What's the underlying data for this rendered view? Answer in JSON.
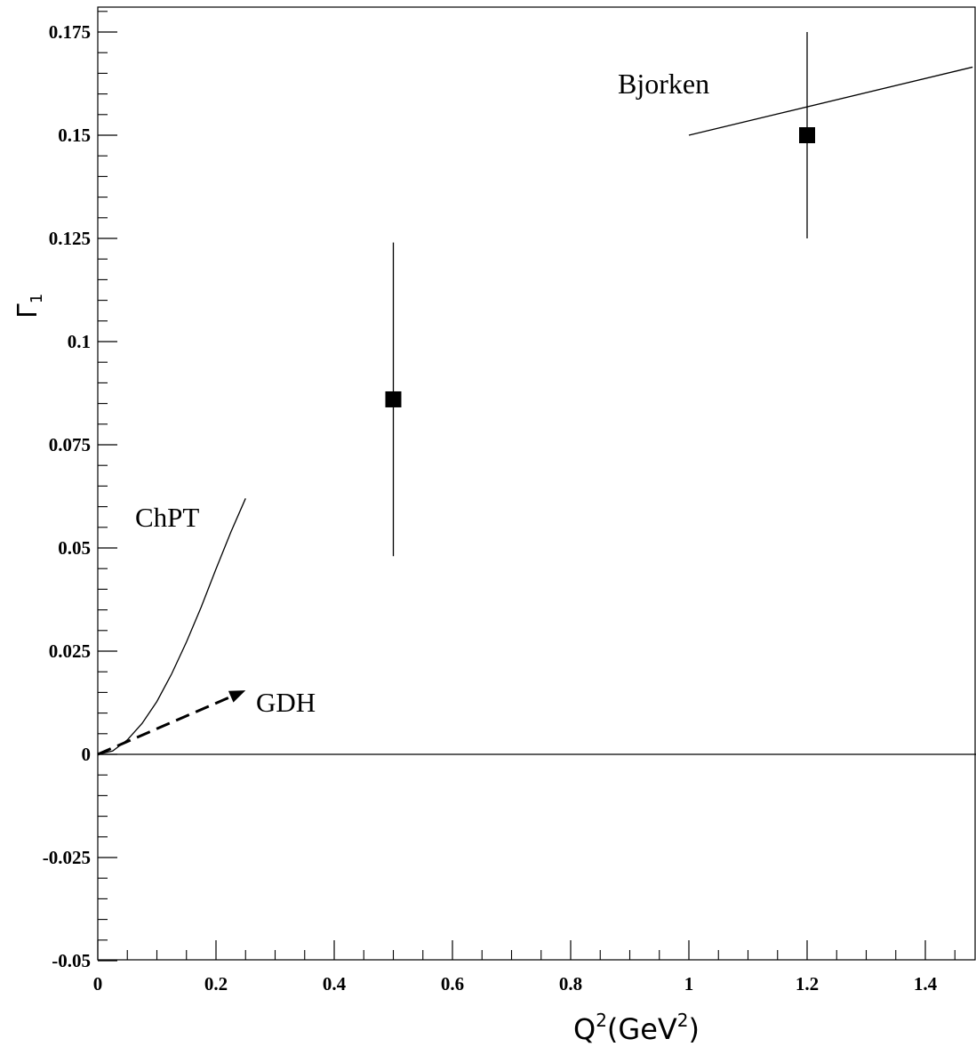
{
  "chart_data": {
    "type": "scatter",
    "title": "",
    "xlabel": "Q²(GeV²)",
    "xlabel_base": "Q",
    "xlabel_sup": "2",
    "xlabel_unit_open": "(GeV",
    "xlabel_unit_sup": "2",
    "xlabel_unit_close": ")",
    "ylabel": "Γ₁",
    "ylabel_main": "Γ",
    "ylabel_sub": "1",
    "xlim": [
      0,
      1.48
    ],
    "ylim": [
      -0.05,
      0.18
    ],
    "x_ticks": [
      0,
      0.2,
      0.4,
      0.6,
      0.8,
      1,
      1.2,
      1.4
    ],
    "x_tick_labels": [
      "0",
      "0.2",
      "0.4",
      "0.6",
      "0.8",
      "1",
      "1.2",
      "1.4"
    ],
    "y_ticks": [
      -0.05,
      -0.025,
      0,
      0.025,
      0.05,
      0.075,
      0.1,
      0.125,
      0.15,
      0.175
    ],
    "y_tick_labels": [
      "-0.05",
      "-0.025",
      "0",
      "0.025",
      "0.05",
      "0.075",
      "0.1",
      "0.125",
      "0.15",
      "0.175"
    ],
    "grid": false,
    "points": [
      {
        "x": 0.5,
        "y": 0.086,
        "yerr_low": 0.048,
        "yerr_high": 0.124
      },
      {
        "x": 1.2,
        "y": 0.15,
        "yerr_low": 0.125,
        "yerr_high": 0.175
      }
    ],
    "zero_line": {
      "y": 0
    },
    "curves": {
      "chpt": {
        "label": "ChPT",
        "x": [
          0,
          0.025,
          0.05,
          0.075,
          0.1,
          0.125,
          0.15,
          0.175,
          0.2,
          0.225,
          0.25
        ],
        "y": [
          0,
          0.0008,
          0.0035,
          0.0075,
          0.0128,
          0.0195,
          0.0272,
          0.0357,
          0.0449,
          0.0538,
          0.062
        ]
      },
      "gdh": {
        "label": "GDH",
        "x": [
          0,
          0.25
        ],
        "y": [
          0,
          0.0155
        ],
        "style": "dashed-arrow"
      },
      "bjorken": {
        "label": "Bjorken",
        "x": [
          1.0,
          1.48
        ],
        "y": [
          0.15,
          0.1665
        ]
      }
    }
  }
}
